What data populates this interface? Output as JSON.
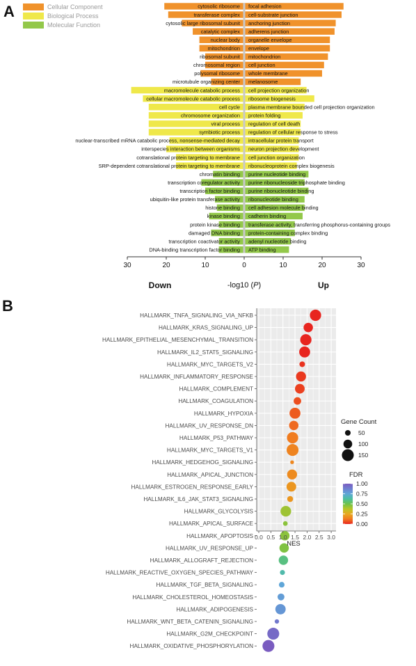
{
  "figure": {
    "panel_a_label": "A",
    "panel_b_label": "B"
  },
  "colors": {
    "cellular_component": "#f0922b",
    "biological_process": "#efe84a",
    "molecular_function": "#93c84a",
    "center_line": "#c8c8c8",
    "panel_b_background": "#ebebeb",
    "fdr_gradient": [
      "#e8251f",
      "#f07a1f",
      "#e8a91f",
      "#b9c427",
      "#6dc24a",
      "#4dbfa0",
      "#5fa6d8",
      "#6f7fd0",
      "#7a5cc0"
    ]
  },
  "chart_data": [
    {
      "type": "bar",
      "orientation": "horizontal-diverging",
      "xlabel": "-log10 (P)",
      "xlabel_main": "-log10 (",
      "xlabel_italic": "P",
      "xlabel_end": ")",
      "down_label": "Down",
      "up_label": "Up",
      "xlim": [
        -30,
        30
      ],
      "xticks": [
        30,
        20,
        10,
        0,
        10,
        20,
        30
      ],
      "legend": [
        {
          "label": "Cellular Component",
          "color": "#f0922b"
        },
        {
          "label": "Biological Process",
          "color": "#efe84a"
        },
        {
          "label": "Molecular Function",
          "color": "#93c84a"
        }
      ],
      "down": [
        {
          "term": "cytosolic ribosome",
          "value": 20.5,
          "category": "Cellular Component"
        },
        {
          "term": "transferase complex",
          "value": 19.5,
          "category": "Cellular Component"
        },
        {
          "term": "cytosolic large ribosomal subunit",
          "value": 16.0,
          "category": "Cellular Component"
        },
        {
          "term": "catalytic complex",
          "value": 13.2,
          "category": "Cellular Component"
        },
        {
          "term": "nuclear body",
          "value": 11.5,
          "category": "Cellular Component"
        },
        {
          "term": "mitochondrion",
          "value": 11.5,
          "category": "Cellular Component"
        },
        {
          "term": "ribosomal subunit",
          "value": 10.0,
          "category": "Cellular Component"
        },
        {
          "term": "chromosomal region",
          "value": 10.0,
          "category": "Cellular Component"
        },
        {
          "term": "polysomal ribosome",
          "value": 11.2,
          "category": "Cellular Component"
        },
        {
          "term": "microtubule organizing center",
          "value": 8.5,
          "category": "Cellular Component"
        },
        {
          "term": "macromolecule catabolic process",
          "value": 29.0,
          "category": "Biological Process"
        },
        {
          "term": "cellular macromolecule catabolic process",
          "value": 26.0,
          "category": "Biological Process"
        },
        {
          "term": "cell cycle",
          "value": 24.5,
          "category": "Biological Process"
        },
        {
          "term": "chromosome organization",
          "value": 24.5,
          "category": "Biological Process"
        },
        {
          "term": "viral process",
          "value": 24.5,
          "category": "Biological Process"
        },
        {
          "term": "symbiotic process",
          "value": 24.5,
          "category": "Biological Process"
        },
        {
          "term": "nuclear-transcribed mRNA catabolic process, nonsense-mediated decay",
          "value": 19.2,
          "category": "Biological Process"
        },
        {
          "term": "interspecies interaction between organisms",
          "value": 20.0,
          "category": "Biological Process"
        },
        {
          "term": "cotranslational protein targeting to membrane",
          "value": 17.5,
          "category": "Biological Process"
        },
        {
          "term": "SRP-dependent cotranslational protein targeting to membrane",
          "value": 17.5,
          "category": "Biological Process"
        },
        {
          "term": "chromatin binding",
          "value": 8.0,
          "category": "Molecular Function"
        },
        {
          "term": "transcription coregulator activity",
          "value": 11.0,
          "category": "Molecular Function"
        },
        {
          "term": "transcription factor binding",
          "value": 10.0,
          "category": "Molecular Function"
        },
        {
          "term": "ubiquitin-like protein transferase activity",
          "value": 7.5,
          "category": "Molecular Function"
        },
        {
          "term": "histone binding",
          "value": 7.0,
          "category": "Molecular Function"
        },
        {
          "term": "kinase binding",
          "value": 9.0,
          "category": "Molecular Function"
        },
        {
          "term": "protein kinase binding",
          "value": 6.5,
          "category": "Molecular Function"
        },
        {
          "term": "damaged DNA binding",
          "value": 8.5,
          "category": "Molecular Function"
        },
        {
          "term": "transcription coactivator activity",
          "value": 6.5,
          "category": "Molecular Function"
        },
        {
          "term": "DNA-binding transcription factor binding",
          "value": 6.5,
          "category": "Molecular Function"
        }
      ],
      "up": [
        {
          "term": "focal adhesion",
          "value": 25.5,
          "category": "Cellular Component"
        },
        {
          "term": "cell-substrate junction",
          "value": 25.0,
          "category": "Cellular Component"
        },
        {
          "term": "anchoring junction",
          "value": 23.5,
          "category": "Cellular Component"
        },
        {
          "term": "adherens junction",
          "value": 23.2,
          "category": "Cellular Component"
        },
        {
          "term": "organelle envelope",
          "value": 22.0,
          "category": "Cellular Component"
        },
        {
          "term": "envelope",
          "value": 22.0,
          "category": "Cellular Component"
        },
        {
          "term": "mitochondrion",
          "value": 21.5,
          "category": "Cellular Component"
        },
        {
          "term": "cell junction",
          "value": 20.5,
          "category": "Cellular Component"
        },
        {
          "term": "whole membrane",
          "value": 20.0,
          "category": "Cellular Component"
        },
        {
          "term": "melanosome",
          "value": 14.5,
          "category": "Cellular Component"
        },
        {
          "term": "cell projection organization",
          "value": 16.0,
          "category": "Biological Process"
        },
        {
          "term": "ribosome biogenesis",
          "value": 18.0,
          "category": "Biological Process"
        },
        {
          "term": "plasma membrane bounded cell projection organization",
          "value": 15.5,
          "category": "Biological Process"
        },
        {
          "term": "protein folding",
          "value": 15.0,
          "category": "Biological Process"
        },
        {
          "term": "regulation of cell death",
          "value": 14.5,
          "category": "Biological Process"
        },
        {
          "term": "regulation of cellular response to stress",
          "value": 14.5,
          "category": "Biological Process"
        },
        {
          "term": "intracellular protein transport",
          "value": 14.0,
          "category": "Biological Process"
        },
        {
          "term": "neuron projection development",
          "value": 14.0,
          "category": "Biological Process"
        },
        {
          "term": "cell junction organization",
          "value": 14.0,
          "category": "Biological Process"
        },
        {
          "term": "ribonucleoprotein complex biogenesis",
          "value": 13.5,
          "category": "Biological Process"
        },
        {
          "term": "purine nucleotide binding",
          "value": 16.5,
          "category": "Molecular Function"
        },
        {
          "term": "purine ribonucleoside triphosphate binding",
          "value": 15.5,
          "category": "Molecular Function"
        },
        {
          "term": "purine ribonucleotide binding",
          "value": 16.5,
          "category": "Molecular Function"
        },
        {
          "term": "ribonucleotide binding",
          "value": 15.5,
          "category": "Molecular Function"
        },
        {
          "term": "cell adhesion molecule binding",
          "value": 15.5,
          "category": "Molecular Function"
        },
        {
          "term": "cadherin binding",
          "value": 15.0,
          "category": "Molecular Function"
        },
        {
          "term": "transferase activity, transferring phosphorus-containing groups",
          "value": 13.0,
          "category": "Molecular Function"
        },
        {
          "term": "protein-containing complex binding",
          "value": 13.0,
          "category": "Molecular Function"
        },
        {
          "term": "adenyl nucleotide binding",
          "value": 12.0,
          "category": "Molecular Function"
        },
        {
          "term": "ATP binding",
          "value": 11.5,
          "category": "Molecular Function"
        }
      ]
    },
    {
      "type": "scatter",
      "subtype": "dot-plot",
      "xlabel": "NES",
      "xlim": [
        0,
        3.0
      ],
      "xticks": [
        "0.0",
        "0.5",
        "1.0",
        "1.5",
        "2.0",
        "2.5",
        "3.0"
      ],
      "size_legend_title": "Gene Count",
      "size_legend": [
        50,
        100,
        150
      ],
      "color_legend_title": "FDR",
      "color_legend_ticks": [
        "1.00",
        "0.75",
        "0.50",
        "0.25",
        "0.00"
      ],
      "color_range": [
        0,
        1
      ],
      "grid": true,
      "points": [
        {
          "term": "HALLMARK_TNFA_SIGNALING_VIA_NFKB",
          "nes": 2.35,
          "gene_count": 140,
          "fdr": 0.0
        },
        {
          "term": "HALLMARK_KRAS_SIGNALING_UP",
          "nes": 2.05,
          "gene_count": 110,
          "fdr": 0.0
        },
        {
          "term": "HALLMARK_EPITHELIAL_MESENCHYMAL_TRANSITION",
          "nes": 1.95,
          "gene_count": 140,
          "fdr": 0.0
        },
        {
          "term": "HALLMARK_IL2_STAT5_SIGNALING",
          "nes": 1.9,
          "gene_count": 135,
          "fdr": 0.0
        },
        {
          "term": "HALLMARK_MYC_TARGETS_V2",
          "nes": 1.8,
          "gene_count": 50,
          "fdr": 0.02
        },
        {
          "term": "HALLMARK_INFLAMMATORY_RESPONSE",
          "nes": 1.75,
          "gene_count": 120,
          "fdr": 0.03
        },
        {
          "term": "HALLMARK_COMPLEMENT",
          "nes": 1.7,
          "gene_count": 115,
          "fdr": 0.04
        },
        {
          "term": "HALLMARK_COAGULATION",
          "nes": 1.6,
          "gene_count": 80,
          "fdr": 0.06
        },
        {
          "term": "HALLMARK_HYPOXIA",
          "nes": 1.5,
          "gene_count": 135,
          "fdr": 0.08
        },
        {
          "term": "HALLMARK_UV_RESPONSE_DN",
          "nes": 1.45,
          "gene_count": 110,
          "fdr": 0.1
        },
        {
          "term": "HALLMARK_P53_PATHWAY",
          "nes": 1.4,
          "gene_count": 140,
          "fdr": 0.13
        },
        {
          "term": "HALLMARK_MYC_TARGETS_V1",
          "nes": 1.4,
          "gene_count": 150,
          "fdr": 0.15
        },
        {
          "term": "HALLMARK_HEDGEHOG_SIGNALING",
          "nes": 1.38,
          "gene_count": 20,
          "fdr": 0.16
        },
        {
          "term": "HALLMARK_APICAL_JUNCTION",
          "nes": 1.38,
          "gene_count": 120,
          "fdr": 0.17
        },
        {
          "term": "HALLMARK_ESTROGEN_RESPONSE_EARLY",
          "nes": 1.35,
          "gene_count": 115,
          "fdr": 0.2
        },
        {
          "term": "HALLMARK_IL6_JAK_STAT3_SIGNALING",
          "nes": 1.3,
          "gene_count": 55,
          "fdr": 0.2
        },
        {
          "term": "HALLMARK_GLYCOLYSIS",
          "nes": 1.12,
          "gene_count": 130,
          "fdr": 0.42
        },
        {
          "term": "HALLMARK_APICAL_SURFACE",
          "nes": 1.1,
          "gene_count": 35,
          "fdr": 0.45
        },
        {
          "term": "HALLMARK_APOPTOSIS",
          "nes": 1.08,
          "gene_count": 110,
          "fdr": 0.45
        },
        {
          "term": "HALLMARK_UV_RESPONSE_UP",
          "nes": 1.05,
          "gene_count": 110,
          "fdr": 0.47
        },
        {
          "term": "HALLMARK_ALLOGRAFT_REJECTION",
          "nes": 1.02,
          "gene_count": 110,
          "fdr": 0.58
        },
        {
          "term": "HALLMARK_REACTIVE_OXYGEN_SPECIES_PATHWAY",
          "nes": 0.98,
          "gene_count": 40,
          "fdr": 0.65
        },
        {
          "term": "HALLMARK_TGF_BETA_SIGNALING",
          "nes": 0.95,
          "gene_count": 50,
          "fdr": 0.75
        },
        {
          "term": "HALLMARK_CHOLESTEROL_HOMEOSTASIS",
          "nes": 0.92,
          "gene_count": 70,
          "fdr": 0.78
        },
        {
          "term": "HALLMARK_ADIPOGENESIS",
          "nes": 0.9,
          "gene_count": 125,
          "fdr": 0.8
        },
        {
          "term": "HALLMARK_WNT_BETA_CATENIN_SIGNALING",
          "nes": 0.75,
          "gene_count": 30,
          "fdr": 0.9
        },
        {
          "term": "HALLMARK_G2M_CHECKPOINT",
          "nes": 0.6,
          "gene_count": 150,
          "fdr": 0.95
        },
        {
          "term": "HALLMARK_OXIDATIVE_PHOSPHORYLATION",
          "nes": 0.4,
          "gene_count": 150,
          "fdr": 1.0
        }
      ]
    }
  ]
}
